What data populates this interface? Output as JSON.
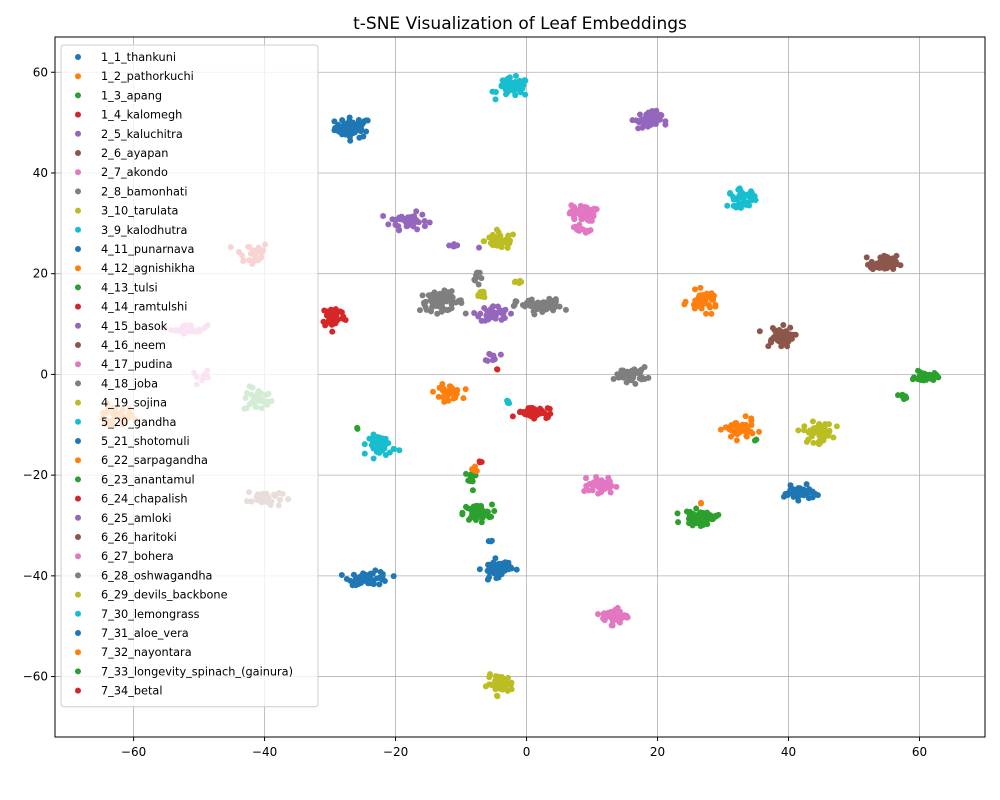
{
  "chart_data": {
    "type": "scatter",
    "title": "t-SNE Visualization of Leaf Embeddings",
    "xlabel": "",
    "ylabel": "",
    "xlim": [
      -72,
      70
    ],
    "ylim": [
      -72,
      67
    ],
    "xticks": [
      -60,
      -40,
      -20,
      0,
      20,
      40,
      60
    ],
    "yticks": [
      -60,
      -40,
      -20,
      0,
      20,
      40,
      60
    ],
    "grid": true,
    "legend_position": "upper-left",
    "series": [
      {
        "name": "1_1_thankuni",
        "color": "#1f77b4",
        "clusters": [
          [
            -26.5,
            49,
            2.5,
            1.8,
            55
          ]
        ]
      },
      {
        "name": "1_2_pathorkuchi",
        "color": "#ff7f0e",
        "clusters": [
          [
            -63,
            -8.5,
            2.8,
            2.0,
            35
          ]
        ]
      },
      {
        "name": "1_3_apang",
        "color": "#2ca02c",
        "clusters": [
          [
            -41,
            -5,
            2.0,
            2.2,
            30
          ]
        ]
      },
      {
        "name": "1_4_kalomegh",
        "color": "#d62728",
        "clusters": [
          [
            -42,
            24,
            2.5,
            2.2,
            30
          ]
        ]
      },
      {
        "name": "2_5_kaluchitra",
        "color": "#9467bd",
        "clusters": [
          [
            -18,
            30.5,
            2.6,
            1.5,
            45
          ],
          [
            -11,
            25.5,
            2.5,
            0.3,
            6
          ]
        ]
      },
      {
        "name": "2_6_ayapan",
        "color": "#8c564b",
        "clusters": [
          [
            -40,
            -24.5,
            2.4,
            1.7,
            30
          ]
        ]
      },
      {
        "name": "2_7_akondo",
        "color": "#e377c2",
        "clusters": [
          [
            -51.5,
            9,
            2.5,
            0.8,
            30
          ],
          [
            -49.5,
            -0.5,
            1.5,
            1.0,
            10
          ]
        ]
      },
      {
        "name": "2_8_bamonhati",
        "color": "#7f7f7f",
        "clusters": [
          [
            -13,
            14.5,
            3.0,
            1.7,
            70
          ]
        ]
      },
      {
        "name": "3_10_tarulata",
        "color": "#bcbd22",
        "clusters": [
          [
            -4,
            26.5,
            2.2,
            1.5,
            50
          ],
          [
            -1.5,
            18,
            0.8,
            0.8,
            5
          ]
        ]
      },
      {
        "name": "3_9_kalodhutra",
        "color": "#17becf",
        "clusters": [
          [
            -2,
            57,
            2.2,
            1.7,
            50
          ]
        ]
      },
      {
        "name": "4_11_punarnava",
        "color": "#1f77b4",
        "clusters": [
          [
            -24,
            -40.5,
            2.8,
            1.2,
            60
          ]
        ]
      },
      {
        "name": "4_12_agnishikha",
        "color": "#ff7f0e",
        "clusters": [
          [
            -12,
            -3.5,
            1.8,
            1.3,
            40
          ]
        ]
      },
      {
        "name": "4_13_tulsi",
        "color": "#2ca02c",
        "clusters": [
          [
            -7.5,
            -27.5,
            2.0,
            1.5,
            55
          ],
          [
            -8.5,
            -21,
            0.8,
            2.0,
            12
          ]
        ]
      },
      {
        "name": "4_14_ramtulshi",
        "color": "#d62728",
        "clusters": [
          [
            -29.5,
            11.5,
            1.6,
            2.0,
            55
          ]
        ]
      },
      {
        "name": "4_15_basok",
        "color": "#9467bd",
        "clusters": [
          [
            -5,
            12,
            2.0,
            1.5,
            40
          ],
          [
            -5,
            3.5,
            0.9,
            1.0,
            10
          ]
        ]
      },
      {
        "name": "4_16_neem",
        "color": "#8c564b",
        "clusters": [
          [
            38.5,
            7.5,
            2.0,
            1.8,
            55
          ]
        ]
      },
      {
        "name": "4_17_pudina",
        "color": "#e377c2",
        "clusters": [
          [
            8.5,
            32,
            1.8,
            1.5,
            45
          ],
          [
            8.5,
            29,
            1.2,
            1.0,
            10
          ]
        ]
      },
      {
        "name": "4_18_joba",
        "color": "#7f7f7f",
        "clusters": [
          [
            2,
            13.5,
            3.2,
            1.3,
            70
          ],
          [
            16,
            0,
            2.2,
            1.3,
            45
          ]
        ]
      },
      {
        "name": "4_19_sojina",
        "color": "#bcbd22",
        "clusters": [
          [
            44.5,
            -11.5,
            2.0,
            1.8,
            55
          ],
          [
            -4,
            -61.5,
            1.8,
            1.6,
            45
          ]
        ]
      },
      {
        "name": "5_20_gandha",
        "color": "#17becf",
        "clusters": [
          [
            -22,
            -14,
            1.8,
            1.8,
            45
          ],
          [
            33,
            35,
            2.0,
            1.6,
            40
          ]
        ]
      },
      {
        "name": "5_21_shotomuli",
        "color": "#1f77b4",
        "clusters": [
          [
            -4.5,
            -38.5,
            2.0,
            1.5,
            55
          ],
          [
            41.5,
            -23.5,
            2.0,
            1.2,
            45
          ]
        ]
      },
      {
        "name": "6_22_sarpagandha",
        "color": "#ff7f0e",
        "clusters": [
          [
            27,
            14.5,
            2.0,
            1.8,
            50
          ],
          [
            32.5,
            -11,
            2.0,
            1.8,
            50
          ],
          [
            -8,
            -19,
            0.8,
            0.5,
            6
          ]
        ]
      },
      {
        "name": "6_23_anantamul",
        "color": "#2ca02c",
        "clusters": [
          [
            61,
            -0.5,
            1.5,
            0.9,
            40
          ],
          [
            26.5,
            -28.5,
            2.3,
            1.3,
            55
          ],
          [
            57.5,
            -4.5,
            0.8,
            0.6,
            6
          ]
        ]
      },
      {
        "name": "6_24_chapalish",
        "color": "#d62728",
        "clusters": [
          [
            1,
            -7.5,
            2.2,
            1.0,
            55
          ]
        ]
      },
      {
        "name": "6_25_amloki",
        "color": "#9467bd",
        "clusters": [
          [
            18.5,
            50.5,
            1.8,
            1.6,
            55
          ]
        ]
      },
      {
        "name": "6_26_haritoki",
        "color": "#8c564b",
        "clusters": [
          [
            54.5,
            22,
            1.8,
            1.4,
            55
          ]
        ]
      },
      {
        "name": "6_27_bohera",
        "color": "#e377c2",
        "clusters": [
          [
            11.5,
            -22,
            1.8,
            1.4,
            45
          ],
          [
            13.5,
            -48,
            1.8,
            1.4,
            45
          ]
        ]
      },
      {
        "name": "6_28_oshwagandha",
        "color": "#7f7f7f",
        "clusters": [
          [
            -7,
            19,
            1.0,
            2.0,
            8
          ]
        ]
      },
      {
        "name": "6_29_devils_backbone",
        "color": "#bcbd22",
        "clusters": [
          [
            -7,
            16,
            0.8,
            1.2,
            8
          ]
        ]
      },
      {
        "name": "7_30_lemongrass",
        "color": "#17becf",
        "clusters": [
          [
            -3,
            -5.5,
            0.6,
            0.4,
            4
          ]
        ]
      },
      {
        "name": "7_31_aloe_vera",
        "color": "#1f77b4",
        "clusters": [
          [
            -5.5,
            -33,
            0.5,
            0.5,
            3
          ]
        ]
      },
      {
        "name": "7_32_nayontara",
        "color": "#ff7f0e",
        "clusters": [
          [
            26.5,
            -25.5,
            0.4,
            0.4,
            2
          ]
        ]
      },
      {
        "name": "7_33_longevity_spinach_(gainura)",
        "color": "#2ca02c",
        "clusters": [
          [
            -26,
            -10.5,
            0.3,
            0.3,
            2
          ],
          [
            35,
            -13,
            0.3,
            0.3,
            2
          ]
        ]
      },
      {
        "name": "7_34_betal",
        "color": "#d62728",
        "clusters": [
          [
            -4.5,
            1,
            0.3,
            0.3,
            2
          ],
          [
            -7,
            -17.5,
            0.4,
            0.4,
            3
          ]
        ]
      }
    ]
  }
}
